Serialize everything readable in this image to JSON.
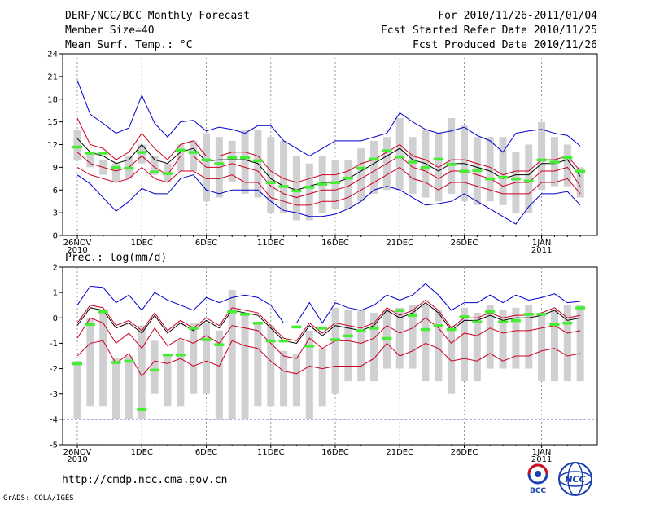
{
  "header": {
    "title": "DERF/NCC/BCC Monthly Forecast",
    "member": "Member Size=40",
    "variable": "Mean Surf. Temp.: °C",
    "period": "For 2010/11/26-2011/01/04",
    "started": "Fcst Started Refer Date 2010/11/25",
    "produced": "Fcst Produced Date 2010/11/26"
  },
  "footer": {
    "url": "http://cmdp.ncc.cma.gov.cn",
    "grads": "GrADS: COLA/IGES",
    "logo_bcc": "BCC",
    "logo_ncc": "NCC"
  },
  "colors": {
    "max_min": "#0000cc",
    "ens_mean": "#000000",
    "spread": "#cc0022",
    "obs": "#44ee33",
    "box": "#d0d0d2",
    "grid": "#999999"
  },
  "chart_data": [
    {
      "type": "line",
      "title": "Mean Surf. Temp.: °C",
      "x_tick_labels": [
        "26NOV\n2010",
        "1DEC",
        "6DEC",
        "11DEC",
        "16DEC",
        "21DEC",
        "26DEC",
        "1JAN\n2011"
      ],
      "x_tick_days": [
        1,
        6,
        11,
        16,
        21,
        26,
        31,
        37
      ],
      "days": [
        1,
        2,
        3,
        4,
        5,
        6,
        7,
        8,
        9,
        10,
        11,
        12,
        13,
        14,
        15,
        16,
        17,
        18,
        19,
        20,
        21,
        22,
        23,
        24,
        25,
        26,
        27,
        28,
        29,
        30,
        31,
        32,
        33,
        34,
        35,
        36,
        37,
        38,
        39,
        40
      ],
      "ylim": [
        0,
        24
      ],
      "yticks": [
        0,
        3,
        6,
        9,
        12,
        15,
        18,
        21,
        24
      ],
      "series": [
        {
          "name": "max",
          "values": [
            20.5,
            16,
            14.8,
            13.5,
            14.2,
            18.5,
            14.8,
            13,
            15,
            15.2,
            13.8,
            14.3,
            14,
            13.5,
            14.5,
            14.5,
            12.5,
            11.5,
            10.5,
            11.5,
            12.5,
            12.5,
            12.5,
            13,
            13.5,
            16.2,
            15,
            14,
            13.5,
            13.8,
            14.3,
            13.2,
            12.5,
            11,
            13.5,
            13.8,
            14,
            13.5,
            13.2,
            11.8
          ]
        },
        {
          "name": "upper",
          "values": [
            15.5,
            12,
            11.5,
            10,
            11,
            13.5,
            11.5,
            10,
            12,
            12.5,
            10.5,
            10.5,
            11,
            11,
            10.5,
            8.5,
            7.5,
            7,
            7.5,
            8,
            8,
            8.5,
            9.5,
            10,
            11,
            12,
            10.5,
            10,
            9,
            10,
            10,
            9.5,
            9,
            8,
            8.5,
            8.5,
            10,
            10,
            10.5,
            8.5
          ]
        },
        {
          "name": "mean",
          "values": [
            12.8,
            11,
            10.5,
            9.5,
            10,
            12,
            10,
            9.5,
            11,
            11.5,
            9.8,
            10,
            10,
            10,
            9.5,
            7.5,
            6.5,
            6,
            6.5,
            7,
            7,
            7.5,
            8.5,
            9.5,
            10.5,
            11.5,
            10,
            9.5,
            8.5,
            9.5,
            9.5,
            9,
            8.5,
            7.5,
            8,
            8,
            9.5,
            9.5,
            10,
            7.8
          ]
        },
        {
          "name": "lower",
          "values": [
            11,
            9.5,
            9,
            8.5,
            9,
            10.5,
            9,
            8,
            10.5,
            10.5,
            9,
            9,
            9.5,
            9,
            8.5,
            6.5,
            5.5,
            5,
            5.5,
            6,
            6,
            6.5,
            7.5,
            8.5,
            9.5,
            10.5,
            9,
            8.5,
            7.5,
            8.5,
            8.5,
            8,
            7.5,
            6.5,
            7,
            7,
            8.5,
            8.5,
            9,
            6.5
          ]
        },
        {
          "name": "lower2",
          "values": [
            9,
            8,
            7.5,
            7,
            7.5,
            9,
            7.5,
            7,
            8.5,
            8.5,
            7.5,
            7.5,
            8,
            7,
            7,
            5,
            4.5,
            4,
            4,
            4.5,
            4.5,
            5,
            6,
            7,
            8,
            9,
            7.5,
            7,
            6,
            7,
            7,
            6.5,
            6,
            5.5,
            5.5,
            5.5,
            7,
            7,
            7.5,
            5.5
          ]
        },
        {
          "name": "min",
          "values": [
            8,
            6.8,
            5,
            3.2,
            4.5,
            6.2,
            5.5,
            5.5,
            7.5,
            8,
            6,
            5.5,
            6,
            6,
            6,
            4.5,
            3.3,
            3,
            2.5,
            2.5,
            2.8,
            3.5,
            4.5,
            6,
            6.5,
            6,
            5,
            4,
            4.2,
            4.5,
            5.5,
            4.5,
            3.5,
            2.5,
            1.5,
            3.8,
            5.5,
            5.5,
            5.8,
            4
          ]
        },
        {
          "name": "box_top",
          "values": [
            14,
            11,
            10,
            9.5,
            10.5,
            12,
            10.5,
            9.5,
            12,
            12.5,
            13.5,
            13,
            12.5,
            14,
            14,
            13,
            12.5,
            10.5,
            9.5,
            10.5,
            10,
            10,
            11.5,
            12.5,
            13,
            15.5,
            13,
            14,
            13.5,
            15.5,
            14.5,
            13,
            13,
            13,
            11,
            12,
            15,
            13,
            12,
            9
          ]
        },
        {
          "name": "box_bottom",
          "values": [
            10,
            9,
            8,
            7,
            7.5,
            9.5,
            8,
            7,
            8.5,
            8.5,
            4.5,
            5,
            7,
            5.5,
            5,
            3,
            3,
            2,
            2,
            3,
            3.5,
            3.5,
            4.5,
            5.5,
            6,
            6,
            5.5,
            5,
            4.5,
            5.5,
            4.5,
            4,
            4.5,
            4,
            3,
            3,
            6,
            6.5,
            6.5,
            5
          ]
        },
        {
          "name": "observed",
          "values": [
            11.7,
            10.9,
            10.9,
            9,
            8.9,
            11,
            8.4,
            8.2,
            11.3,
            11,
            10,
            9.5,
            10.3,
            10.3,
            9.9,
            7,
            6.5,
            5.9,
            6.4,
            6.8,
            7,
            7.6,
            8.9,
            10.1,
            11.2,
            10.4,
            9.7,
            9,
            10.1,
            9.4,
            8.5,
            8.6,
            7.5,
            7.7,
            7.5,
            7.2,
            10,
            9.7,
            10.3,
            8.5
          ]
        }
      ]
    },
    {
      "type": "line",
      "title": "Prec.: log(mm/d)",
      "x_tick_labels": [
        "26NOV\n2010",
        "1DEC",
        "6DEC",
        "11DEC",
        "16DEC",
        "21DEC",
        "26DEC",
        "1JAN\n2011"
      ],
      "x_tick_days": [
        1,
        6,
        11,
        16,
        21,
        26,
        31,
        37
      ],
      "days": [
        1,
        2,
        3,
        4,
        5,
        6,
        7,
        8,
        9,
        10,
        11,
        12,
        13,
        14,
        15,
        16,
        17,
        18,
        19,
        20,
        21,
        22,
        23,
        24,
        25,
        26,
        27,
        28,
        29,
        30,
        31,
        32,
        33,
        34,
        35,
        36,
        37,
        38,
        39,
        40
      ],
      "ylim": [
        -5,
        2
      ],
      "yticks": [
        -5,
        -4,
        -3,
        -2,
        -1,
        0,
        1,
        2
      ],
      "series": [
        {
          "name": "max",
          "values": [
            0.5,
            1.25,
            1.2,
            0.6,
            0.9,
            0.3,
            1.0,
            0.7,
            0.5,
            0.3,
            0.8,
            0.6,
            0.8,
            0.9,
            0.8,
            0.5,
            -0.2,
            -0.2,
            0.6,
            -0.2,
            0.6,
            0.4,
            0.3,
            0.5,
            0.9,
            0.7,
            0.9,
            1.35,
            0.9,
            0.3,
            0.6,
            0.6,
            0.9,
            0.6,
            0.9,
            0.7,
            0.8,
            0.95,
            0.6,
            0.65
          ]
        },
        {
          "name": "upper",
          "values": [
            -0.2,
            0.5,
            0.4,
            -0.3,
            -0.1,
            -0.5,
            0.2,
            -0.5,
            -0.1,
            -0.4,
            0.0,
            -0.3,
            0.4,
            0.3,
            0.2,
            -0.3,
            -0.8,
            -0.9,
            -0.2,
            -0.6,
            -0.2,
            -0.3,
            -0.4,
            -0.2,
            0.4,
            0.1,
            0.3,
            0.7,
            0.3,
            -0.4,
            0.0,
            0.0,
            0.2,
            0.0,
            0.1,
            0.1,
            0.2,
            0.4,
            0.0,
            0.1
          ]
        },
        {
          "name": "mean",
          "values": [
            -0.3,
            0.4,
            0.3,
            -0.4,
            -0.2,
            -0.6,
            0.1,
            -0.6,
            -0.2,
            -0.5,
            -0.1,
            -0.4,
            0.3,
            0.2,
            0.1,
            -0.4,
            -0.9,
            -1.0,
            -0.3,
            -0.7,
            -0.3,
            -0.4,
            -0.5,
            -0.3,
            0.3,
            0.0,
            0.2,
            0.6,
            0.2,
            -0.5,
            -0.1,
            -0.1,
            0.1,
            -0.1,
            0.0,
            0.0,
            0.1,
            0.3,
            -0.1,
            0.0
          ]
        },
        {
          "name": "lower",
          "values": [
            -0.8,
            0.0,
            -0.2,
            -1.0,
            -0.6,
            -1.2,
            -0.4,
            -1.1,
            -0.8,
            -1.0,
            -0.7,
            -1.0,
            -0.3,
            -0.4,
            -0.5,
            -1.0,
            -1.5,
            -1.6,
            -0.8,
            -1.2,
            -0.9,
            -0.9,
            -1.0,
            -0.8,
            -0.3,
            -0.6,
            -0.4,
            0.0,
            -0.4,
            -1.0,
            -0.6,
            -0.7,
            -0.4,
            -0.6,
            -0.5,
            -0.5,
            -0.4,
            -0.3,
            -0.6,
            -0.5
          ]
        },
        {
          "name": "lower2",
          "values": [
            -1.5,
            -1.0,
            -0.9,
            -1.8,
            -1.4,
            -2.3,
            -1.7,
            -1.8,
            -1.6,
            -1.9,
            -1.7,
            -1.9,
            -0.9,
            -1.1,
            -1.2,
            -1.7,
            -2.1,
            -2.2,
            -1.9,
            -2.0,
            -1.9,
            -1.9,
            -1.9,
            -1.6,
            -1.0,
            -1.5,
            -1.3,
            -1.0,
            -1.2,
            -1.7,
            -1.6,
            -1.7,
            -1.4,
            -1.7,
            -1.5,
            -1.5,
            -1.3,
            -1.2,
            -1.5,
            -1.4
          ]
        },
        {
          "name": "min",
          "values": [
            -4.0,
            -4.0,
            -4.0,
            -4.0,
            -4.0,
            -4.0,
            -4.0,
            -4.0,
            -4.0,
            -4.0,
            -4.0,
            -4.0,
            -4.0,
            -4.0,
            -4.0,
            -4.0,
            -4.0,
            -4.0,
            -4.0,
            -4.0,
            -4.0,
            -4.0,
            -4.0,
            -4.0,
            -4.0,
            -4.0,
            -4.0,
            -4.0,
            -4.0,
            -4.0,
            -4.0,
            -4.0,
            -4.0,
            -4.0,
            -4.0,
            -4.0,
            -4.0,
            -4.0,
            -4.0,
            -4.0
          ]
        },
        {
          "name": "box_top",
          "values": [
            -1.7,
            0.0,
            0.3,
            -1.6,
            -1.5,
            -0.3,
            -0.9,
            -1.5,
            -0.9,
            -0.2,
            -0.2,
            -0.5,
            1.1,
            0.2,
            -0.2,
            -0.3,
            -1.3,
            -1.4,
            -0.5,
            -1.2,
            0.4,
            0.3,
            0.3,
            0.2,
            0.3,
            0.4,
            0.5,
            0.5,
            0.3,
            -0.3,
            0.4,
            0.2,
            0.5,
            0.3,
            0.4,
            0.5,
            0.2,
            0.3,
            0.5,
            0.5
          ]
        },
        {
          "name": "box_bottom",
          "values": [
            -4.0,
            -3.5,
            -3.5,
            -4.0,
            -4.0,
            -4.0,
            -3.0,
            -3.5,
            -3.5,
            -3.0,
            -3.0,
            -4.0,
            -4.0,
            -4.0,
            -3.5,
            -3.5,
            -3.5,
            -3.5,
            -4.0,
            -3.5,
            -3.0,
            -2.5,
            -2.5,
            -2.5,
            -2.0,
            -2.0,
            -2.0,
            -2.5,
            -2.5,
            -3.0,
            -2.5,
            -2.5,
            -2.0,
            -2.0,
            -2.0,
            -2.0,
            -2.5,
            -2.5,
            -2.5,
            -2.5
          ]
        },
        {
          "name": "observed",
          "values": [
            -1.8,
            -0.25,
            0.25,
            -1.75,
            -1.7,
            -3.6,
            -2.05,
            -1.45,
            -1.45,
            -0.4,
            -0.85,
            -1.05,
            0.25,
            0.15,
            -0.2,
            -0.9,
            -0.9,
            -0.35,
            -1.1,
            -0.4,
            -0.85,
            -0.7,
            -0.5,
            -0.4,
            -0.8,
            0.3,
            0.1,
            -0.45,
            -0.3,
            -0.45,
            0.05,
            -0.15,
            0.25,
            -0.15,
            -0.1,
            0.15,
            0.15,
            -0.25,
            -0.2,
            0.4
          ]
        }
      ]
    }
  ]
}
